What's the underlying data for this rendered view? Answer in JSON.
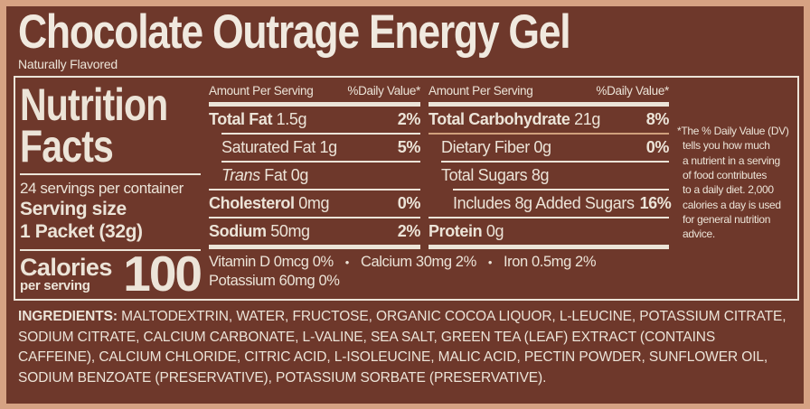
{
  "colors": {
    "background_tan": "#d6a283",
    "panel_brown": "#6e382b",
    "text_cream": "#ece4d8",
    "carb_rule_tan": "#cfa07c"
  },
  "header": {
    "title": "Chocolate Outrage Energy Gel",
    "subtitle": "Naturally Flavored"
  },
  "facts": {
    "title_line1": "Nutrition",
    "title_line2": "Facts",
    "servings_per_container": "24 servings per container",
    "serving_size_label": "Serving size",
    "serving_size_value": "1 Packet (32g)",
    "calories_label": "Calories",
    "calories_sublabel": "per serving",
    "calories_value": "100",
    "columns": {
      "amount_header": "Amount Per Serving",
      "dv_header": "%Daily Value*"
    },
    "mid_rows": [
      {
        "bold": "Total Fat",
        "rest": "1.5g",
        "dv": "2%"
      },
      {
        "rest": "Saturated Fat 1g",
        "dv": "5%"
      },
      {
        "italic": "Trans",
        "rest": "Fat 0g",
        "dv": ""
      },
      {
        "bold": "Cholesterol",
        "rest": "0mg",
        "dv": "0%"
      },
      {
        "bold": "Sodium",
        "rest": "50mg",
        "dv": "2%"
      }
    ],
    "right_rows": [
      {
        "bold": "Total Carbohydrate",
        "rest": "21g",
        "dv": "8%"
      },
      {
        "rest": "Dietary Fiber 0g",
        "dv": "0%"
      },
      {
        "rest": "Total Sugars 8g",
        "dv": ""
      },
      {
        "rest": "Includes 8g Added Sugars",
        "dv": "16%"
      },
      {
        "bold": "Protein",
        "rest": "0g",
        "dv": ""
      }
    ],
    "micronutrients": {
      "bullet": "•",
      "line1": [
        "Vitamin D  0mcg  0%",
        "Calcium  30mg 2%",
        "Iron  0.5mg  2%"
      ],
      "line2": "Potassium  60mg  0%"
    },
    "footnote": "*The % Daily Value (DV)\ntells you how much\na nutrient in a serving\nof food contributes\nto a daily diet. 2,000\ncalories a day is used\nfor general nutrition\nadvice."
  },
  "ingredients": {
    "label": "INGREDIENTS:",
    "text": "MALTODEXTRIN, WATER, FRUCTOSE, ORGANIC COCOA LIQUOR, L-LEUCINE, POTASSIUM CITRATE, SODIUM CITRATE, CALCIUM CARBONATE, L-VALINE, SEA SALT, GREEN TEA (LEAF) EXTRACT (CONTAINS CAFFEINE), CALCIUM CHLORIDE, CITRIC ACID, L-ISOLEUCINE, MALIC ACID, PECTIN POWDER, SUNFLOWER OIL, SODIUM BENZOATE (PRESERVATIVE), POTASSIUM SORBATE (PRESERVATIVE)."
  }
}
